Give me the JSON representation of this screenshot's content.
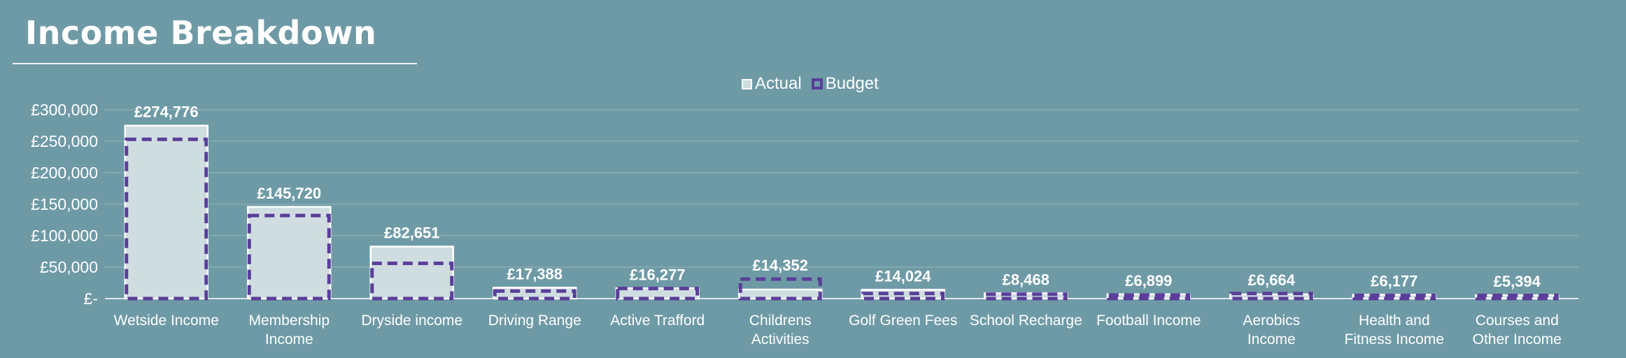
{
  "page": {
    "title": "Income Breakdown"
  },
  "legend": {
    "actual_label": "Actual",
    "budget_label": "Budget"
  },
  "colors": {
    "background": "#6e9aa6",
    "actual_fill": "#cfdde1",
    "actual_stroke": "#ffffff",
    "budget_stroke": "#5a3e99",
    "text": "#ffffff"
  },
  "chart_data": {
    "type": "bar",
    "title": "Income Breakdown",
    "categories": [
      [
        "Wetside Income"
      ],
      [
        "Membership",
        "Income"
      ],
      [
        "Dryside income"
      ],
      [
        "Driving Range"
      ],
      [
        "Active Trafford"
      ],
      [
        "Childrens",
        "Activities"
      ],
      [
        "Golf Green Fees"
      ],
      [
        "School Recharge"
      ],
      [
        "Football Income"
      ],
      [
        "Aerobics",
        "Income"
      ],
      [
        "Health and",
        "Fitness Income"
      ],
      [
        "Courses and",
        "Other Income"
      ]
    ],
    "series": [
      {
        "name": "Actual",
        "values": [
          274776,
          145720,
          82651,
          17388,
          16277,
          14352,
          14024,
          8468,
          6899,
          6664,
          6177,
          5394
        ]
      },
      {
        "name": "Budget",
        "values": [
          253000,
          132000,
          56000,
          12000,
          16000,
          31000,
          8000,
          7000,
          5500,
          8000,
          5000,
          5000
        ]
      }
    ],
    "data_labels": [
      "£274,776",
      "£145,720",
      "£82,651",
      "£17,388",
      "£16,277",
      "£14,352",
      "£14,024",
      "£8,468",
      "£6,899",
      "£6,664",
      "£6,177",
      "£5,394"
    ],
    "y_ticks": [
      0,
      50000,
      100000,
      150000,
      200000,
      250000,
      300000
    ],
    "y_tick_labels": [
      "£-",
      "£50,000",
      "£100,000",
      "£150,000",
      "£200,000",
      "£250,000",
      "£300,000"
    ],
    "ylim": [
      0,
      300000
    ],
    "grid": true,
    "legend_position": "top-center"
  }
}
